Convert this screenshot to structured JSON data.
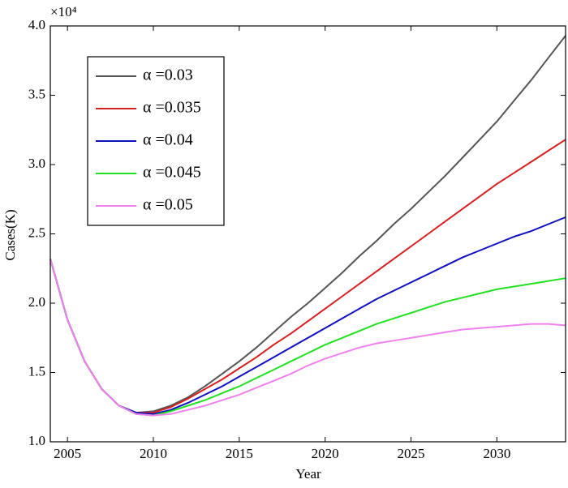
{
  "chart_data": {
    "type": "line",
    "y_multiplier": "×10⁴",
    "xlabel": "Year",
    "ylabel": "Cases(K)",
    "x": [
      2004,
      2005,
      2006,
      2007,
      2008,
      2009,
      2010,
      2011,
      2012,
      2013,
      2014,
      2015,
      2016,
      2017,
      2018,
      2019,
      2020,
      2021,
      2022,
      2023,
      2024,
      2025,
      2026,
      2027,
      2028,
      2029,
      2030,
      2031,
      2032,
      2033,
      2034
    ],
    "series": [
      {
        "name": "α =0.03",
        "color": "#555555",
        "values": [
          2.32,
          1.88,
          1.58,
          1.38,
          1.26,
          1.21,
          1.22,
          1.26,
          1.32,
          1.4,
          1.49,
          1.58,
          1.68,
          1.79,
          1.9,
          2.0,
          2.11,
          2.22,
          2.34,
          2.45,
          2.57,
          2.68,
          2.8,
          2.92,
          3.05,
          3.18,
          3.31,
          3.46,
          3.61,
          3.77,
          3.93
        ]
      },
      {
        "name": "α =0.035",
        "color": "#d62020",
        "values": [
          2.32,
          1.88,
          1.58,
          1.38,
          1.26,
          1.21,
          1.21,
          1.25,
          1.31,
          1.38,
          1.45,
          1.53,
          1.61,
          1.7,
          1.78,
          1.87,
          1.96,
          2.05,
          2.14,
          2.23,
          2.32,
          2.41,
          2.5,
          2.59,
          2.68,
          2.77,
          2.86,
          2.94,
          3.02,
          3.1,
          3.18
        ]
      },
      {
        "name": "α =0.04",
        "color": "#1010c0",
        "values": [
          2.32,
          1.88,
          1.58,
          1.38,
          1.26,
          1.21,
          1.2,
          1.23,
          1.28,
          1.34,
          1.4,
          1.47,
          1.54,
          1.61,
          1.68,
          1.75,
          1.82,
          1.89,
          1.96,
          2.03,
          2.09,
          2.15,
          2.21,
          2.27,
          2.33,
          2.38,
          2.43,
          2.48,
          2.52,
          2.57,
          2.62
        ]
      },
      {
        "name": "α =0.045",
        "color": "#22e022",
        "values": [
          2.32,
          1.88,
          1.58,
          1.38,
          1.26,
          1.2,
          1.19,
          1.22,
          1.26,
          1.3,
          1.35,
          1.4,
          1.46,
          1.52,
          1.58,
          1.64,
          1.7,
          1.75,
          1.8,
          1.85,
          1.89,
          1.93,
          1.97,
          2.01,
          2.04,
          2.07,
          2.1,
          2.12,
          2.14,
          2.16,
          2.18
        ]
      },
      {
        "name": "α =0.05",
        "color": "#f080f0",
        "values": [
          2.32,
          1.88,
          1.58,
          1.38,
          1.26,
          1.2,
          1.19,
          1.2,
          1.23,
          1.26,
          1.3,
          1.34,
          1.39,
          1.44,
          1.49,
          1.55,
          1.6,
          1.64,
          1.68,
          1.71,
          1.73,
          1.75,
          1.77,
          1.79,
          1.81,
          1.82,
          1.83,
          1.84,
          1.85,
          1.85,
          1.84
        ]
      }
    ],
    "xlim": [
      2004,
      2034
    ],
    "xticks": [
      2005,
      2010,
      2015,
      2020,
      2025,
      2030
    ],
    "ylim": [
      1,
      4
    ],
    "yticks": [
      {
        "value": 1,
        "label": "1.0"
      },
      {
        "value": 1.5,
        "label": "1.5"
      },
      {
        "value": 2,
        "label": "2.0"
      },
      {
        "value": 2.5,
        "label": "2.5"
      },
      {
        "value": 3,
        "label": "3.0"
      },
      {
        "value": 3.5,
        "label": "3.5"
      },
      {
        "value": 4,
        "label": "4.0"
      }
    ],
    "legend": "upper left",
    "grid": false
  }
}
